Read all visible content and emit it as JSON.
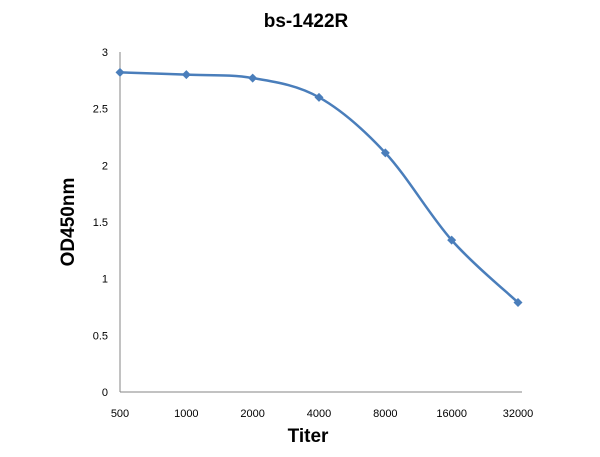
{
  "chart_data": {
    "type": "line",
    "title": "bs-1422R",
    "xlabel": "Titer",
    "ylabel": "OD450nm",
    "categories": [
      "500",
      "1000",
      "2000",
      "4000",
      "8000",
      "16000",
      "32000"
    ],
    "series": [
      {
        "values": [
          2.82,
          2.8,
          2.77,
          2.6,
          2.11,
          1.34,
          0.79
        ]
      }
    ],
    "ylim": [
      0,
      3
    ],
    "yticks": [
      "0",
      "0.5",
      "1",
      "1.5",
      "2",
      "2.5",
      "3"
    ],
    "grid": false,
    "smooth": true,
    "marker": "diamond",
    "line_color": "#4a7ebb"
  }
}
